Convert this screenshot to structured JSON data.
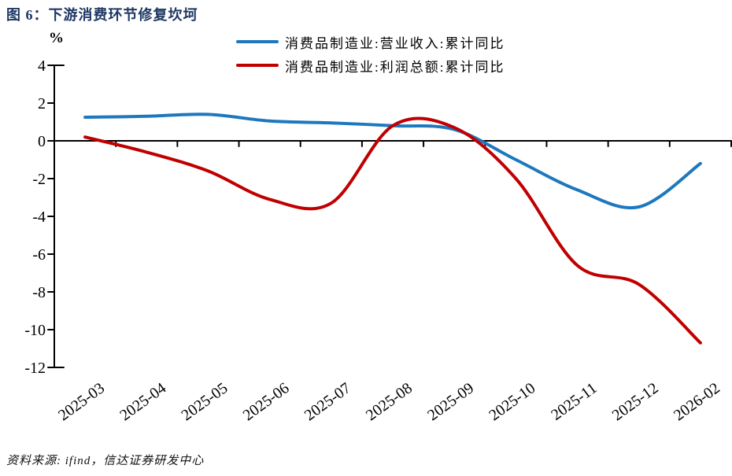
{
  "figure": {
    "title": "图 6：下游消费环节修复坎坷",
    "unit_label": "%",
    "source": "资料来源: ifind，信达证券研发中心"
  },
  "chart_data": {
    "type": "line",
    "title": "下游消费环节修复坎坷",
    "categories": [
      "2025-03",
      "2025-04",
      "2025-05",
      "2025-06",
      "2025-07",
      "2025-08",
      "2025-09",
      "2025-10",
      "2025-11",
      "2025-12",
      "2026-02"
    ],
    "series": [
      {
        "name": "消费品制造业:营业收入:累计同比",
        "color": "#1e78be",
        "values": [
          1.25,
          1.3,
          1.4,
          1.05,
          0.95,
          0.8,
          0.6,
          -1.0,
          -2.6,
          -3.5,
          -1.2
        ]
      },
      {
        "name": "消费品制造业:利润总额:累计同比",
        "color": "#c00000",
        "values": [
          0.2,
          -0.6,
          -1.6,
          -3.1,
          -3.3,
          0.8,
          0.7,
          -2.0,
          -6.6,
          -7.6,
          -10.7
        ]
      }
    ],
    "xlabel": "",
    "ylabel": "%",
    "ylim": [
      -12,
      4
    ],
    "yticks": [
      4,
      2,
      0,
      -2,
      -4,
      -6,
      -8,
      -10,
      -12
    ],
    "grid": false,
    "zero_baseline": true,
    "legend_position": "top",
    "line_smoothing": "smooth",
    "axis_color": "#000000"
  }
}
